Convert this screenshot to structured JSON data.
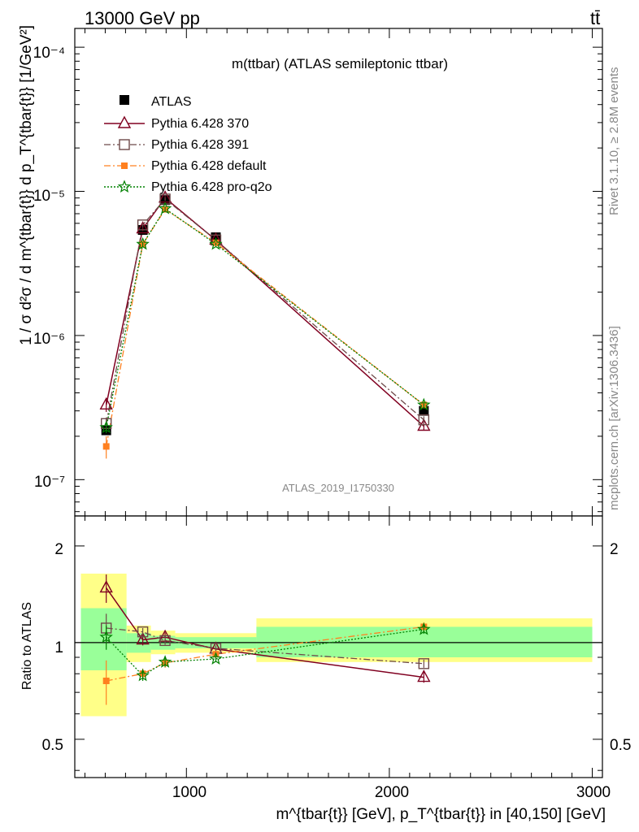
{
  "header": {
    "left": "13000 GeV pp",
    "right": "tt̄"
  },
  "side_labels": {
    "rivet": "Rivet 3.1.10, ≥ 2.8M events",
    "mcplots": "mcplots.cern.ch [arXiv:1306.3436]"
  },
  "main_plot": {
    "title": "m(ttbar) (ATLAS semileptonic ttbar)",
    "ylabel": "1 / σ d²σ / d m^{tbar{t}} d p_T^{tbar{t}} [1/GeV²]",
    "watermark": "ATLAS_2019_I1750330",
    "ytick_labels": [
      "10⁻⁴",
      "10⁻⁵",
      "10⁻⁶",
      "10⁻⁷"
    ]
  },
  "ratio_plot": {
    "ylabel": "Ratio to ATLAS",
    "ytick_labels": [
      "2",
      "1",
      "0.5"
    ]
  },
  "xlabel": "m^{tbar{t}} [GeV], p_T^{tbar{t}} in [40,150] [GeV]",
  "xtick_labels": [
    "1000",
    "2000",
    "3000"
  ],
  "chart_data": [
    {
      "type": "scatter",
      "title": "m(ttbar) (ATLAS semileptonic ttbar)",
      "ylabel": "1 / σ d²σ / d m^{tbar{t}} d p_T^{tbar{t}} [1/GeV²]",
      "xlabel": "m^{tbar{t}} [GeV], p_T^{tbar{t}} in [40,150] [GeV]",
      "xlim": [
        450,
        3050
      ],
      "ylim": [
        5.6e-08,
        0.000135
      ],
      "yscale": "log",
      "grid": false,
      "legend_position": "top-left",
      "x": [
        605,
        785,
        895,
        1145,
        2170
      ],
      "series": [
        {
          "name": "ATLAS",
          "color": "#000000",
          "marker": "filled-square",
          "line": "none",
          "values": [
            2.2e-07,
            5.4e-06,
            8.7e-06,
            4.8e-06,
            3e-07
          ],
          "errors": [
            1.5e-08,
            2.5e-07,
            2e-07,
            1.2e-07,
            1.5e-08
          ]
        },
        {
          "name": "Pythia 6.428 370",
          "color": "#800020",
          "marker": "open-triangle",
          "line": "solid",
          "values": [
            3.3e-07,
            5.5e-06,
            9e-06,
            4.6e-06,
            2.35e-07
          ],
          "errors": [
            3.5e-08,
            2e-07,
            3e-07,
            1e-07,
            1.5e-08
          ]
        },
        {
          "name": "Pythia 6.428 391",
          "color": "#6e4a4a",
          "marker": "open-square",
          "line": "dashdot",
          "values": [
            2.45e-07,
            5.85e-06,
            8.85e-06,
            4.6e-06,
            2.6e-07
          ],
          "errors": [
            2.5e-08,
            2e-07,
            2.5e-07,
            1e-07,
            1.5e-08
          ]
        },
        {
          "name": "Pythia 6.428 default",
          "color": "#ff8020",
          "marker": "filled-square-small",
          "line": "dashdot",
          "values": [
            1.7e-07,
            4.3e-06,
            7.5e-06,
            4.4e-06,
            3.3e-07
          ],
          "errors": [
            3e-08,
            2e-07,
            2.5e-07,
            1e-07,
            1.5e-08
          ]
        },
        {
          "name": "Pythia 6.428 pro-q2o",
          "color": "#008000",
          "marker": "open-star",
          "line": "dotted",
          "values": [
            2.3e-07,
            4.3e-06,
            7.6e-06,
            4.3e-06,
            3.3e-07
          ],
          "errors": [
            2e-08,
            1.5e-07,
            2.5e-07,
            1e-07,
            1.5e-08
          ]
        }
      ]
    },
    {
      "type": "scatter",
      "ylabel": "Ratio to ATLAS",
      "xlim": [
        450,
        3050
      ],
      "ylim": [
        0.38,
        2.48
      ],
      "yscale": "log",
      "grid": false,
      "reference_line": 1,
      "data_bands": {
        "x_edges": [
          [
            480,
            705
          ],
          [
            705,
            825
          ],
          [
            825,
            945
          ],
          [
            945,
            1345
          ],
          [
            1345,
            3000
          ]
        ],
        "inner": [
          [
            0.82,
            1.28
          ],
          [
            0.93,
            1.07
          ],
          [
            0.95,
            1.05
          ],
          [
            0.96,
            1.04
          ],
          [
            0.9,
            1.12
          ]
        ],
        "outer": [
          [
            0.59,
            1.64
          ],
          [
            0.87,
            1.13
          ],
          [
            0.92,
            1.09
          ],
          [
            0.93,
            1.07
          ],
          [
            0.87,
            1.19
          ]
        ],
        "inner_color": "#99ff99",
        "outer_color": "#ffff88"
      },
      "x": [
        605,
        785,
        895,
        1145,
        2170
      ],
      "series": [
        {
          "name": "Pythia 6.428 370",
          "color": "#800020",
          "marker": "open-triangle",
          "line": "solid",
          "values": [
            1.48,
            1.02,
            1.04,
            0.955,
            0.78
          ],
          "errors": [
            0.15,
            0.04,
            0.035,
            0.02,
            0.03
          ]
        },
        {
          "name": "Pythia 6.428 391",
          "color": "#6e4a4a",
          "marker": "open-square",
          "line": "dashdot",
          "values": [
            1.11,
            1.08,
            1.015,
            0.96,
            0.86
          ],
          "errors": [
            0.12,
            0.03,
            0.03,
            0.02,
            0.025
          ]
        },
        {
          "name": "Pythia 6.428 default",
          "color": "#ff8020",
          "marker": "filled-square-small",
          "line": "dashdot",
          "values": [
            0.76,
            0.8,
            0.865,
            0.92,
            1.12
          ],
          "errors": [
            0.12,
            0.03,
            0.03,
            0.02,
            0.035
          ]
        },
        {
          "name": "Pythia 6.428 pro-q2o",
          "color": "#008000",
          "marker": "open-star",
          "line": "dotted",
          "values": [
            1.04,
            0.79,
            0.87,
            0.89,
            1.1
          ],
          "errors": [
            0.09,
            0.03,
            0.03,
            0.02,
            0.035
          ]
        }
      ]
    }
  ]
}
